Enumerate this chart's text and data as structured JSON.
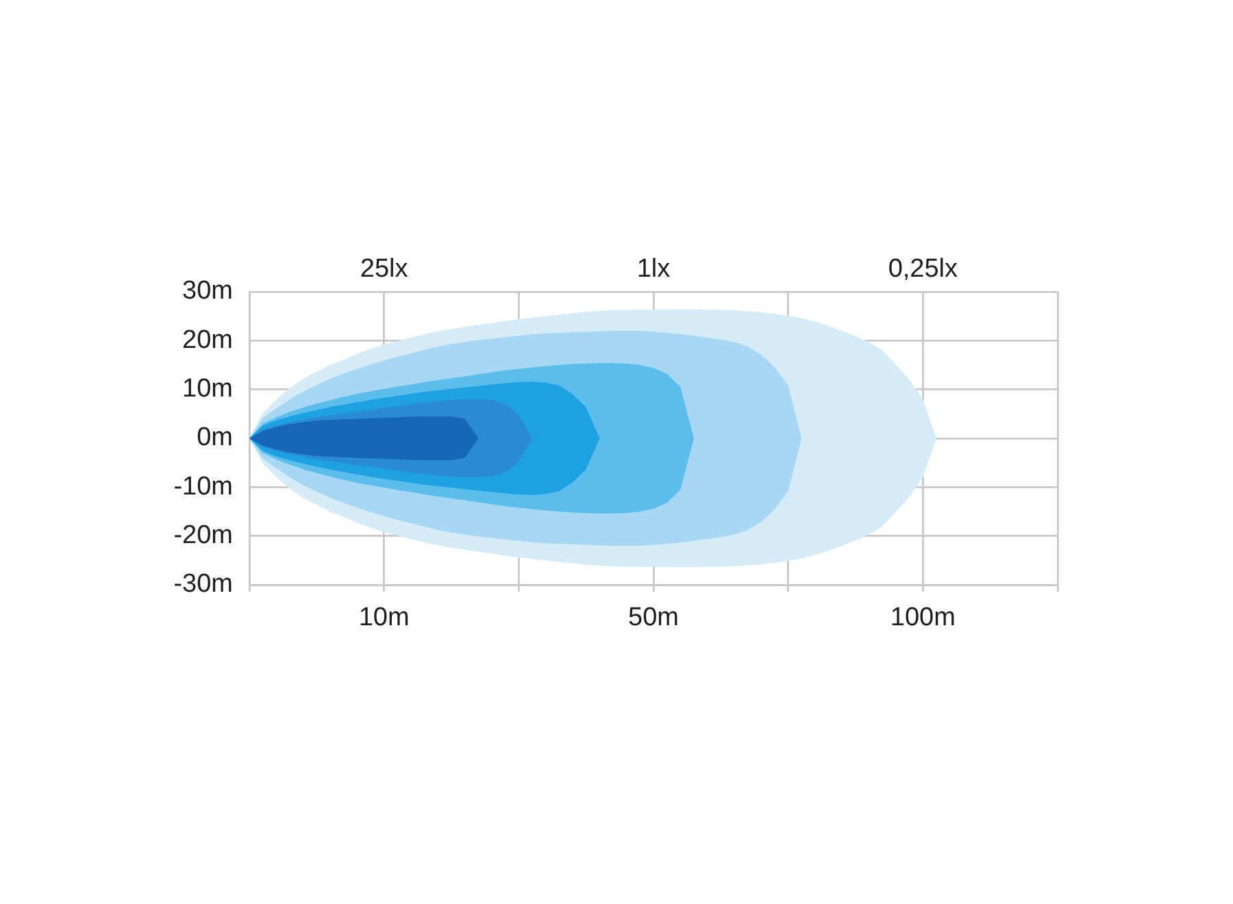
{
  "chart_data": {
    "type": "area",
    "categories": [
      null,
      null,
      null,
      null,
      null,
      null,
      null,
      null,
      null,
      null,
      "10m",
      null,
      null,
      null,
      null,
      null,
      null,
      null,
      null,
      null,
      null,
      null,
      null,
      null,
      null,
      null,
      null,
      null,
      null,
      null,
      "50m",
      null,
      null,
      null,
      null,
      null,
      null,
      null,
      null,
      null,
      null,
      null,
      null,
      null,
      null,
      null,
      null,
      null,
      null,
      null,
      "100m",
      null,
      null,
      null,
      null,
      null,
      null,
      null,
      null,
      null,
      null
    ],
    "ylim": [
      -30,
      30
    ],
    "yticks": [
      {
        "value": -30,
        "label": "-30m"
      },
      {
        "value": -20,
        "label": "-20m"
      },
      {
        "value": -10,
        "label": "-10m"
      },
      {
        "value": 0,
        "label": "0m"
      },
      {
        "value": 10,
        "label": "10m"
      },
      {
        "value": 20,
        "label": "20m"
      },
      {
        "value": 30,
        "label": "30m"
      }
    ],
    "annotations": [
      "25lx",
      "1lx",
      "0,25lx"
    ],
    "grid": true,
    "marker": "none",
    "series": [
      {
        "color": "#d5ebf8",
        "values": [
          0,
          5.2,
          8.0,
          10.3,
          12.2,
          13.6,
          15.0,
          16.1,
          17.3,
          18.3,
          19.2,
          19.9,
          20.6,
          21.3,
          21.9,
          22.4,
          22.8,
          23.2,
          23.6,
          24.0,
          24.4,
          24.7,
          25.0,
          25.3,
          25.6,
          25.9,
          26.1,
          26.2,
          26.3,
          26.3,
          26.3,
          26.4,
          26.4,
          26.4,
          26.3,
          26.3,
          26.2,
          26.0,
          25.8,
          25.5,
          25.1,
          24.6,
          23.9,
          23.0,
          22.0,
          20.9,
          19.7,
          18.0,
          15.0,
          12.0,
          8.0,
          0,
          null,
          null,
          null,
          null,
          null,
          null,
          null,
          null,
          null
        ]
      },
      {
        "color": "#d5ebf8",
        "values": [
          0,
          -5.2,
          -8.0,
          -10.3,
          -12.2,
          -13.6,
          -15.0,
          -16.1,
          -17.3,
          -18.3,
          -19.2,
          -19.9,
          -20.6,
          -21.3,
          -21.9,
          -22.4,
          -22.8,
          -23.2,
          -23.6,
          -24.0,
          -24.4,
          -24.7,
          -25.0,
          -25.3,
          -25.6,
          -25.9,
          -26.1,
          -26.2,
          -26.3,
          -26.3,
          -26.3,
          -26.4,
          -26.4,
          -26.4,
          -26.3,
          -26.3,
          -26.2,
          -26.0,
          -25.8,
          -25.5,
          -25.1,
          -24.6,
          -23.9,
          -23.0,
          -22.0,
          -20.9,
          -19.7,
          -18.0,
          -15.0,
          -12.0,
          -8.0,
          0,
          null,
          null,
          null,
          null,
          null,
          null,
          null,
          null,
          null
        ]
      },
      {
        "color": "#a7d7f3",
        "values": [
          0,
          4.2,
          6.1,
          8.0,
          9.6,
          10.9,
          12.2,
          13.2,
          14.2,
          15.1,
          15.9,
          16.7,
          17.4,
          18.1,
          18.8,
          19.3,
          19.7,
          20.1,
          20.4,
          20.7,
          21.0,
          21.3,
          21.5,
          21.6,
          21.7,
          21.8,
          21.9,
          22.0,
          22.0,
          22.0,
          21.8,
          21.6,
          21.3,
          21.0,
          20.6,
          20.2,
          19.7,
          18.8,
          17.1,
          14.5,
          10.8,
          0,
          null,
          null,
          null,
          null,
          null,
          null,
          null,
          null,
          null,
          null,
          null,
          null,
          null,
          null,
          null,
          null,
          null,
          null,
          null
        ]
      },
      {
        "color": "#a7d7f3",
        "values": [
          0,
          -4.2,
          -6.1,
          -8.0,
          -9.6,
          -10.9,
          -12.2,
          -13.2,
          -14.2,
          -15.1,
          -15.9,
          -16.7,
          -17.4,
          -18.1,
          -18.8,
          -19.3,
          -19.7,
          -20.1,
          -20.4,
          -20.7,
          -21.0,
          -21.3,
          -21.5,
          -21.6,
          -21.7,
          -21.8,
          -21.9,
          -22.0,
          -22.0,
          -22.0,
          -21.8,
          -21.6,
          -21.3,
          -21.0,
          -20.6,
          -20.2,
          -19.7,
          -18.8,
          -17.1,
          -14.5,
          -10.8,
          0,
          null,
          null,
          null,
          null,
          null,
          null,
          null,
          null,
          null,
          null,
          null,
          null,
          null,
          null,
          null,
          null,
          null,
          null,
          null
        ]
      },
      {
        "color": "#5bbdec",
        "values": [
          0,
          3.0,
          4.3,
          5.4,
          6.3,
          7.1,
          7.8,
          8.5,
          9.1,
          9.6,
          10.1,
          10.6,
          11.0,
          11.5,
          11.9,
          12.3,
          12.7,
          13.1,
          13.5,
          13.9,
          14.2,
          14.5,
          14.8,
          15.0,
          15.2,
          15.3,
          15.4,
          15.4,
          15.3,
          15.0,
          14.4,
          13.2,
          10.5,
          0,
          null,
          null,
          null,
          null,
          null,
          null,
          null,
          null,
          null,
          null,
          null,
          null,
          null,
          null,
          null,
          null,
          null,
          null,
          null,
          null,
          null,
          null,
          null,
          null,
          null,
          null,
          null
        ]
      },
      {
        "color": "#5bbdec",
        "values": [
          0,
          -3.0,
          -4.3,
          -5.4,
          -6.3,
          -7.1,
          -7.8,
          -8.5,
          -9.1,
          -9.6,
          -10.1,
          -10.6,
          -11.0,
          -11.5,
          -11.9,
          -12.3,
          -12.7,
          -13.1,
          -13.5,
          -13.9,
          -14.2,
          -14.5,
          -14.8,
          -15.0,
          -15.2,
          -15.3,
          -15.4,
          -15.4,
          -15.3,
          -15.0,
          -14.4,
          -13.2,
          -10.5,
          0,
          null,
          null,
          null,
          null,
          null,
          null,
          null,
          null,
          null,
          null,
          null,
          null,
          null,
          null,
          null,
          null,
          null,
          null,
          null,
          null,
          null,
          null,
          null,
          null,
          null,
          null,
          null
        ]
      },
      {
        "color": "#1da1e2",
        "values": [
          0,
          2.6,
          3.7,
          4.5,
          5.2,
          5.8,
          6.4,
          6.9,
          7.4,
          7.9,
          8.3,
          8.7,
          9.1,
          9.5,
          9.8,
          10.1,
          10.4,
          10.7,
          11.0,
          11.3,
          11.5,
          11.6,
          11.4,
          10.8,
          9.0,
          6.3,
          0,
          null,
          null,
          null,
          null,
          null,
          null,
          null,
          null,
          null,
          null,
          null,
          null,
          null,
          null,
          null,
          null,
          null,
          null,
          null,
          null,
          null,
          null,
          null,
          null,
          null,
          null,
          null,
          null,
          null,
          null,
          null,
          null,
          null,
          null
        ]
      },
      {
        "color": "#1da1e2",
        "values": [
          0,
          -2.6,
          -3.7,
          -4.5,
          -5.2,
          -5.8,
          -6.4,
          -6.9,
          -7.4,
          -7.9,
          -8.3,
          -8.7,
          -9.1,
          -9.5,
          -9.8,
          -10.1,
          -10.4,
          -10.7,
          -11.0,
          -11.3,
          -11.5,
          -11.6,
          -11.4,
          -10.8,
          -9.0,
          -6.3,
          0,
          null,
          null,
          null,
          null,
          null,
          null,
          null,
          null,
          null,
          null,
          null,
          null,
          null,
          null,
          null,
          null,
          null,
          null,
          null,
          null,
          null,
          null,
          null,
          null,
          null,
          null,
          null,
          null,
          null,
          null,
          null,
          null,
          null,
          null
        ]
      },
      {
        "color": "#2a8ad3",
        "values": [
          0,
          1.8,
          2.6,
          3.3,
          3.8,
          4.3,
          4.7,
          5.1,
          5.5,
          5.8,
          6.2,
          6.6,
          7.0,
          7.3,
          7.6,
          7.8,
          8.0,
          8.0,
          7.8,
          7.0,
          4.7,
          0,
          null,
          null,
          null,
          null,
          null,
          null,
          null,
          null,
          null,
          null,
          null,
          null,
          null,
          null,
          null,
          null,
          null,
          null,
          null,
          null,
          null,
          null,
          null,
          null,
          null,
          null,
          null,
          null,
          null,
          null,
          null,
          null,
          null,
          null,
          null,
          null,
          null,
          null,
          null
        ]
      },
      {
        "color": "#2a8ad3",
        "values": [
          0,
          -1.8,
          -2.6,
          -3.3,
          -3.8,
          -4.3,
          -4.7,
          -5.1,
          -5.5,
          -5.8,
          -6.2,
          -6.6,
          -7.0,
          -7.3,
          -7.6,
          -7.8,
          -8.0,
          -8.0,
          -7.8,
          -7.0,
          -4.7,
          0,
          null,
          null,
          null,
          null,
          null,
          null,
          null,
          null,
          null,
          null,
          null,
          null,
          null,
          null,
          null,
          null,
          null,
          null,
          null,
          null,
          null,
          null,
          null,
          null,
          null,
          null,
          null,
          null,
          null,
          null,
          null,
          null,
          null,
          null,
          null,
          null,
          null,
          null,
          null
        ]
      },
      {
        "color": "#1667b7",
        "values": [
          0,
          1.5,
          2.3,
          2.9,
          3.3,
          3.6,
          3.8,
          3.9,
          4.0,
          4.1,
          4.2,
          4.3,
          4.4,
          4.5,
          4.5,
          4.5,
          4.0,
          0,
          null,
          null,
          null,
          null,
          null,
          null,
          null,
          null,
          null,
          null,
          null,
          null,
          null,
          null,
          null,
          null,
          null,
          null,
          null,
          null,
          null,
          null,
          null,
          null,
          null,
          null,
          null,
          null,
          null,
          null,
          null,
          null,
          null,
          null,
          null,
          null,
          null,
          null,
          null,
          null,
          null,
          null,
          null
        ]
      },
      {
        "color": "#1667b7",
        "values": [
          0,
          -1.5,
          -2.3,
          -2.9,
          -3.3,
          -3.6,
          -3.8,
          -3.9,
          -4.0,
          -4.1,
          -4.2,
          -4.3,
          -4.4,
          -4.5,
          -4.5,
          -4.5,
          -4.0,
          0,
          null,
          null,
          null,
          null,
          null,
          null,
          null,
          null,
          null,
          null,
          null,
          null,
          null,
          null,
          null,
          null,
          null,
          null,
          null,
          null,
          null,
          null,
          null,
          null,
          null,
          null,
          null,
          null,
          null,
          null,
          null,
          null,
          null,
          null,
          null,
          null,
          null,
          null,
          null,
          null,
          null,
          null,
          null
        ]
      }
    ]
  }
}
